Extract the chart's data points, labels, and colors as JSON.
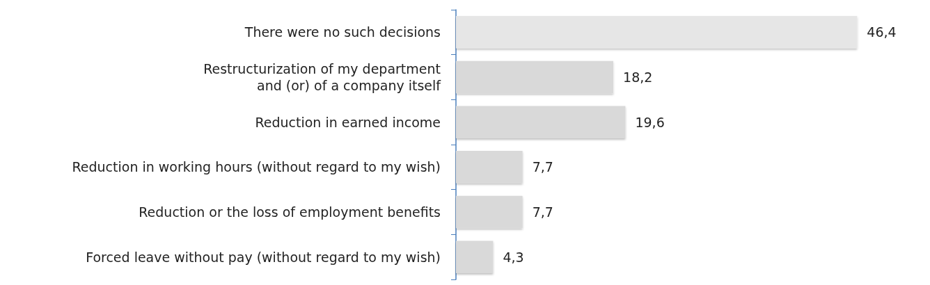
{
  "chart_data": {
    "type": "bar",
    "orientation": "horizontal",
    "categories": [
      "There were no such decisions",
      "Restructurization of my department\nand (or) of a company itself",
      "Reduction in earned income",
      "Reduction in working hours (without regard to my wish)",
      "Reduction or the loss of employment benefits",
      "Forced leave without pay (without regard to my wish)"
    ],
    "values": [
      46.4,
      18.2,
      19.6,
      7.7,
      7.7,
      4.3
    ],
    "value_labels": [
      "46,4",
      "18,2",
      "19,6",
      "7,7",
      "7,7",
      "4,3"
    ],
    "colors": [
      "#e6e6e6",
      "#d9d9d9",
      "#d9d9d9",
      "#d9d9d9",
      "#d9d9d9",
      "#d9d9d9"
    ]
  }
}
